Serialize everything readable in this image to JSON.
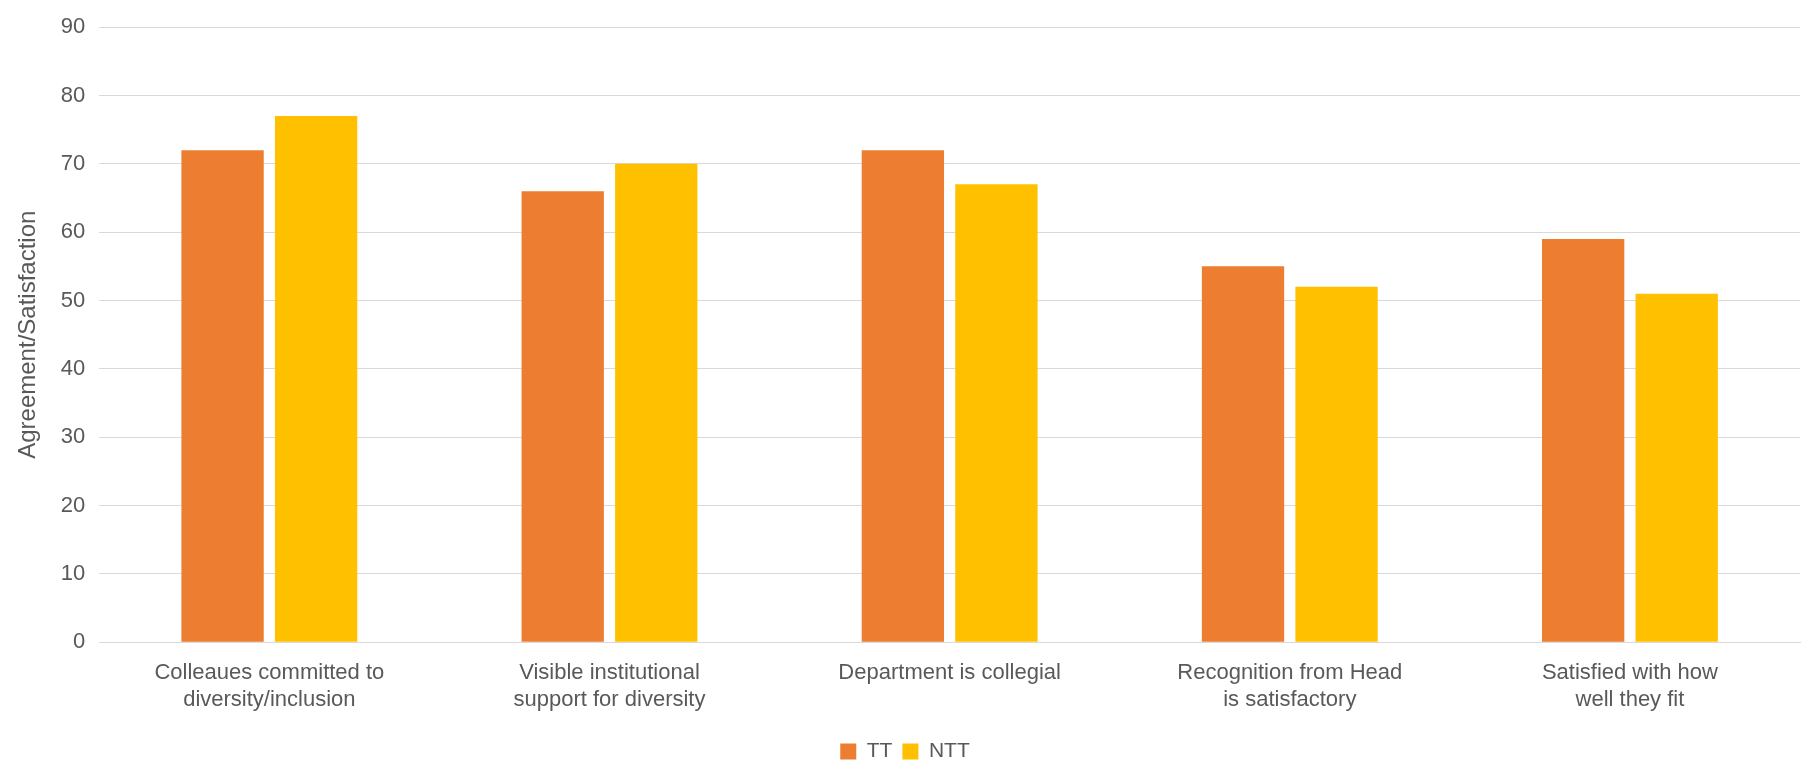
{
  "chart_data": {
    "type": "bar",
    "ylabel": "Agreement/Satisfaction",
    "categories": [
      "Colleaues committed to diversity/inclusion",
      "Visible institutional support for diversity",
      "Department is collegial",
      "Recognition from Head is satisfactory",
      "Satisfied with how well they fit"
    ],
    "series": [
      {
        "name": "TT",
        "color": "#ed7d31",
        "values": [
          72,
          66,
          72,
          55,
          59
        ]
      },
      {
        "name": "NTT",
        "color": "#ffc000",
        "values": [
          77,
          70,
          67,
          52,
          51
        ]
      }
    ],
    "ylim": [
      0,
      90
    ],
    "yticks": [
      0,
      10,
      20,
      30,
      40,
      50,
      60,
      70,
      80,
      90
    ],
    "grid": "y",
    "legend": "bottom"
  }
}
